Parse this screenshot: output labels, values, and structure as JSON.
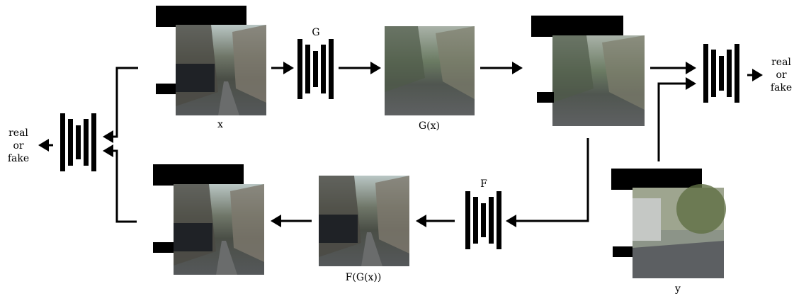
{
  "generator_g": {
    "label": "G"
  },
  "generator_f": {
    "label": "F"
  },
  "images": {
    "x": "x",
    "g_x": "G(x)",
    "f_g_x": "F(G(x))",
    "y": "y"
  },
  "discriminators": [
    {
      "output": [
        "real",
        "or",
        "fake"
      ]
    },
    {
      "output": [
        "real",
        "or",
        "fake"
      ]
    }
  ]
}
